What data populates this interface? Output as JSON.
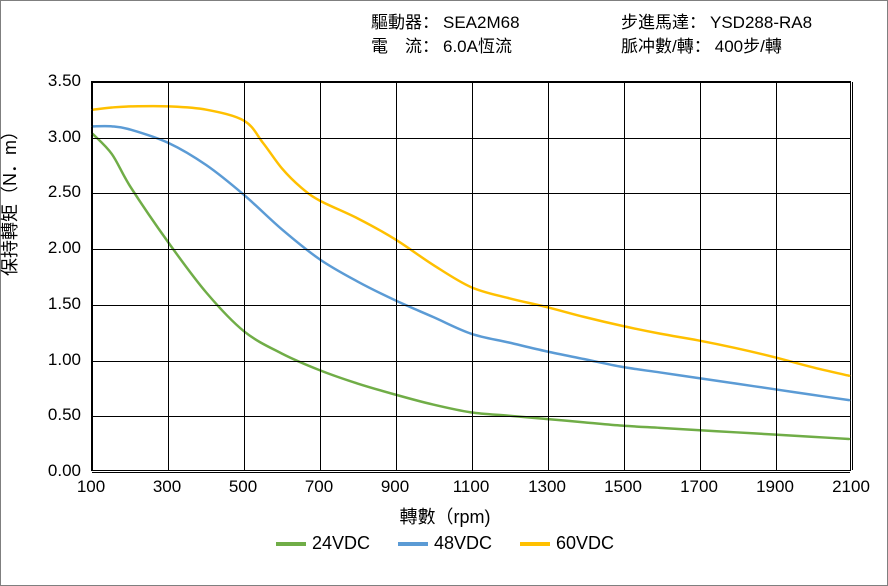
{
  "header": {
    "driver_label": "驅動器：",
    "driver_value": "SEA2M68",
    "current_label": "電　流：",
    "current_value": "6.0A恆流",
    "motor_label": "步進馬達：",
    "motor_value": "YSD288-RA8",
    "pulses_label": "脈冲數/轉：",
    "pulses_value": "400步/轉"
  },
  "chart": {
    "type": "line",
    "xlabel": "轉數（rpm)",
    "ylabel": "保持轉矩（N．m）",
    "xlim": [
      100,
      2100
    ],
    "ylim": [
      0.0,
      3.5
    ],
    "xticks": [
      100,
      300,
      500,
      700,
      900,
      1100,
      1300,
      1500,
      1700,
      1900,
      2100
    ],
    "yticks": [
      0.0,
      0.5,
      1.0,
      1.5,
      2.0,
      2.5,
      3.0,
      3.5
    ],
    "ytick_labels": [
      "0.00",
      "0.50",
      "1.00",
      "1.50",
      "2.00",
      "2.50",
      "3.00",
      "3.50"
    ],
    "plot_bg": "#ffffff",
    "grid_color": "#000000",
    "line_width": 2.5,
    "series": [
      {
        "name": "24VDC",
        "color": "#70ad47",
        "points": [
          [
            100,
            3.03
          ],
          [
            150,
            2.85
          ],
          [
            200,
            2.55
          ],
          [
            300,
            2.05
          ],
          [
            400,
            1.6
          ],
          [
            500,
            1.25
          ],
          [
            600,
            1.05
          ],
          [
            700,
            0.9
          ],
          [
            800,
            0.78
          ],
          [
            900,
            0.68
          ],
          [
            1000,
            0.59
          ],
          [
            1100,
            0.52
          ],
          [
            1200,
            0.49
          ],
          [
            1300,
            0.46
          ],
          [
            1400,
            0.43
          ],
          [
            1500,
            0.4
          ],
          [
            1600,
            0.38
          ],
          [
            1700,
            0.36
          ],
          [
            1800,
            0.34
          ],
          [
            1900,
            0.32
          ],
          [
            2000,
            0.3
          ],
          [
            2100,
            0.28
          ]
        ]
      },
      {
        "name": "48VDC",
        "color": "#5b9bd5",
        "points": [
          [
            100,
            3.1
          ],
          [
            150,
            3.1
          ],
          [
            200,
            3.07
          ],
          [
            300,
            2.95
          ],
          [
            400,
            2.75
          ],
          [
            500,
            2.48
          ],
          [
            600,
            2.17
          ],
          [
            700,
            1.9
          ],
          [
            800,
            1.7
          ],
          [
            900,
            1.53
          ],
          [
            1000,
            1.38
          ],
          [
            1100,
            1.23
          ],
          [
            1200,
            1.15
          ],
          [
            1300,
            1.07
          ],
          [
            1400,
            1.0
          ],
          [
            1500,
            0.93
          ],
          [
            1600,
            0.88
          ],
          [
            1700,
            0.83
          ],
          [
            1800,
            0.78
          ],
          [
            1900,
            0.73
          ],
          [
            2000,
            0.68
          ],
          [
            2100,
            0.63
          ]
        ]
      },
      {
        "name": "60VDC",
        "color": "#ffc000",
        "points": [
          [
            100,
            3.25
          ],
          [
            150,
            3.27
          ],
          [
            200,
            3.28
          ],
          [
            300,
            3.28
          ],
          [
            400,
            3.25
          ],
          [
            500,
            3.15
          ],
          [
            550,
            2.95
          ],
          [
            600,
            2.72
          ],
          [
            650,
            2.55
          ],
          [
            700,
            2.43
          ],
          [
            800,
            2.27
          ],
          [
            900,
            2.08
          ],
          [
            1000,
            1.85
          ],
          [
            1100,
            1.65
          ],
          [
            1200,
            1.55
          ],
          [
            1300,
            1.47
          ],
          [
            1400,
            1.38
          ],
          [
            1500,
            1.3
          ],
          [
            1600,
            1.23
          ],
          [
            1700,
            1.17
          ],
          [
            1800,
            1.1
          ],
          [
            1900,
            1.02
          ],
          [
            2000,
            0.93
          ],
          [
            2100,
            0.85
          ]
        ]
      }
    ]
  }
}
